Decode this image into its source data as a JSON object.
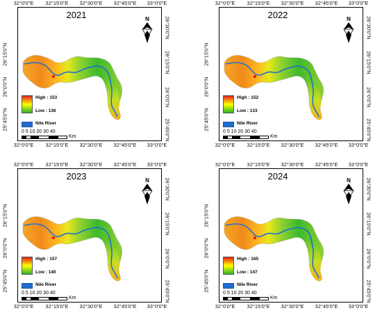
{
  "axes": {
    "lon_labels": [
      "32°0'0\"E",
      "32°15'0\"E",
      "32°30'0\"E",
      "32°45'0\"E",
      "33°0'0\"E"
    ],
    "lat_labels_left": [
      "26°15'0\"N",
      "26°0'0\"N",
      "25°45'0\"N"
    ],
    "lat_labels_right": [
      "26°30'0\"N",
      "26°15'0\"N",
      "26°0'0\"N",
      "25°45'0\"N"
    ]
  },
  "legend": {
    "river_label": "Nile River",
    "scale_numbers": "0  5 10    20     30      40",
    "scale_unit": "Km"
  },
  "north_arrow": {
    "letter": "N",
    "icon": "north-arrow-icon"
  },
  "colors": {
    "high": "#e61e1e",
    "mid": "#ffff00",
    "low": "#2db52d",
    "river": "#1f6fd1"
  },
  "panels": [
    {
      "year": "2021",
      "high_label": "High : 153",
      "low_label": "Low : 136"
    },
    {
      "year": "2022",
      "high_label": "High : 152",
      "low_label": "Low : 133"
    },
    {
      "year": "2023",
      "high_label": "High : 157",
      "low_label": "Low : 140"
    },
    {
      "year": "2024",
      "high_label": "High : 165",
      "low_label": "Low : 147"
    }
  ]
}
